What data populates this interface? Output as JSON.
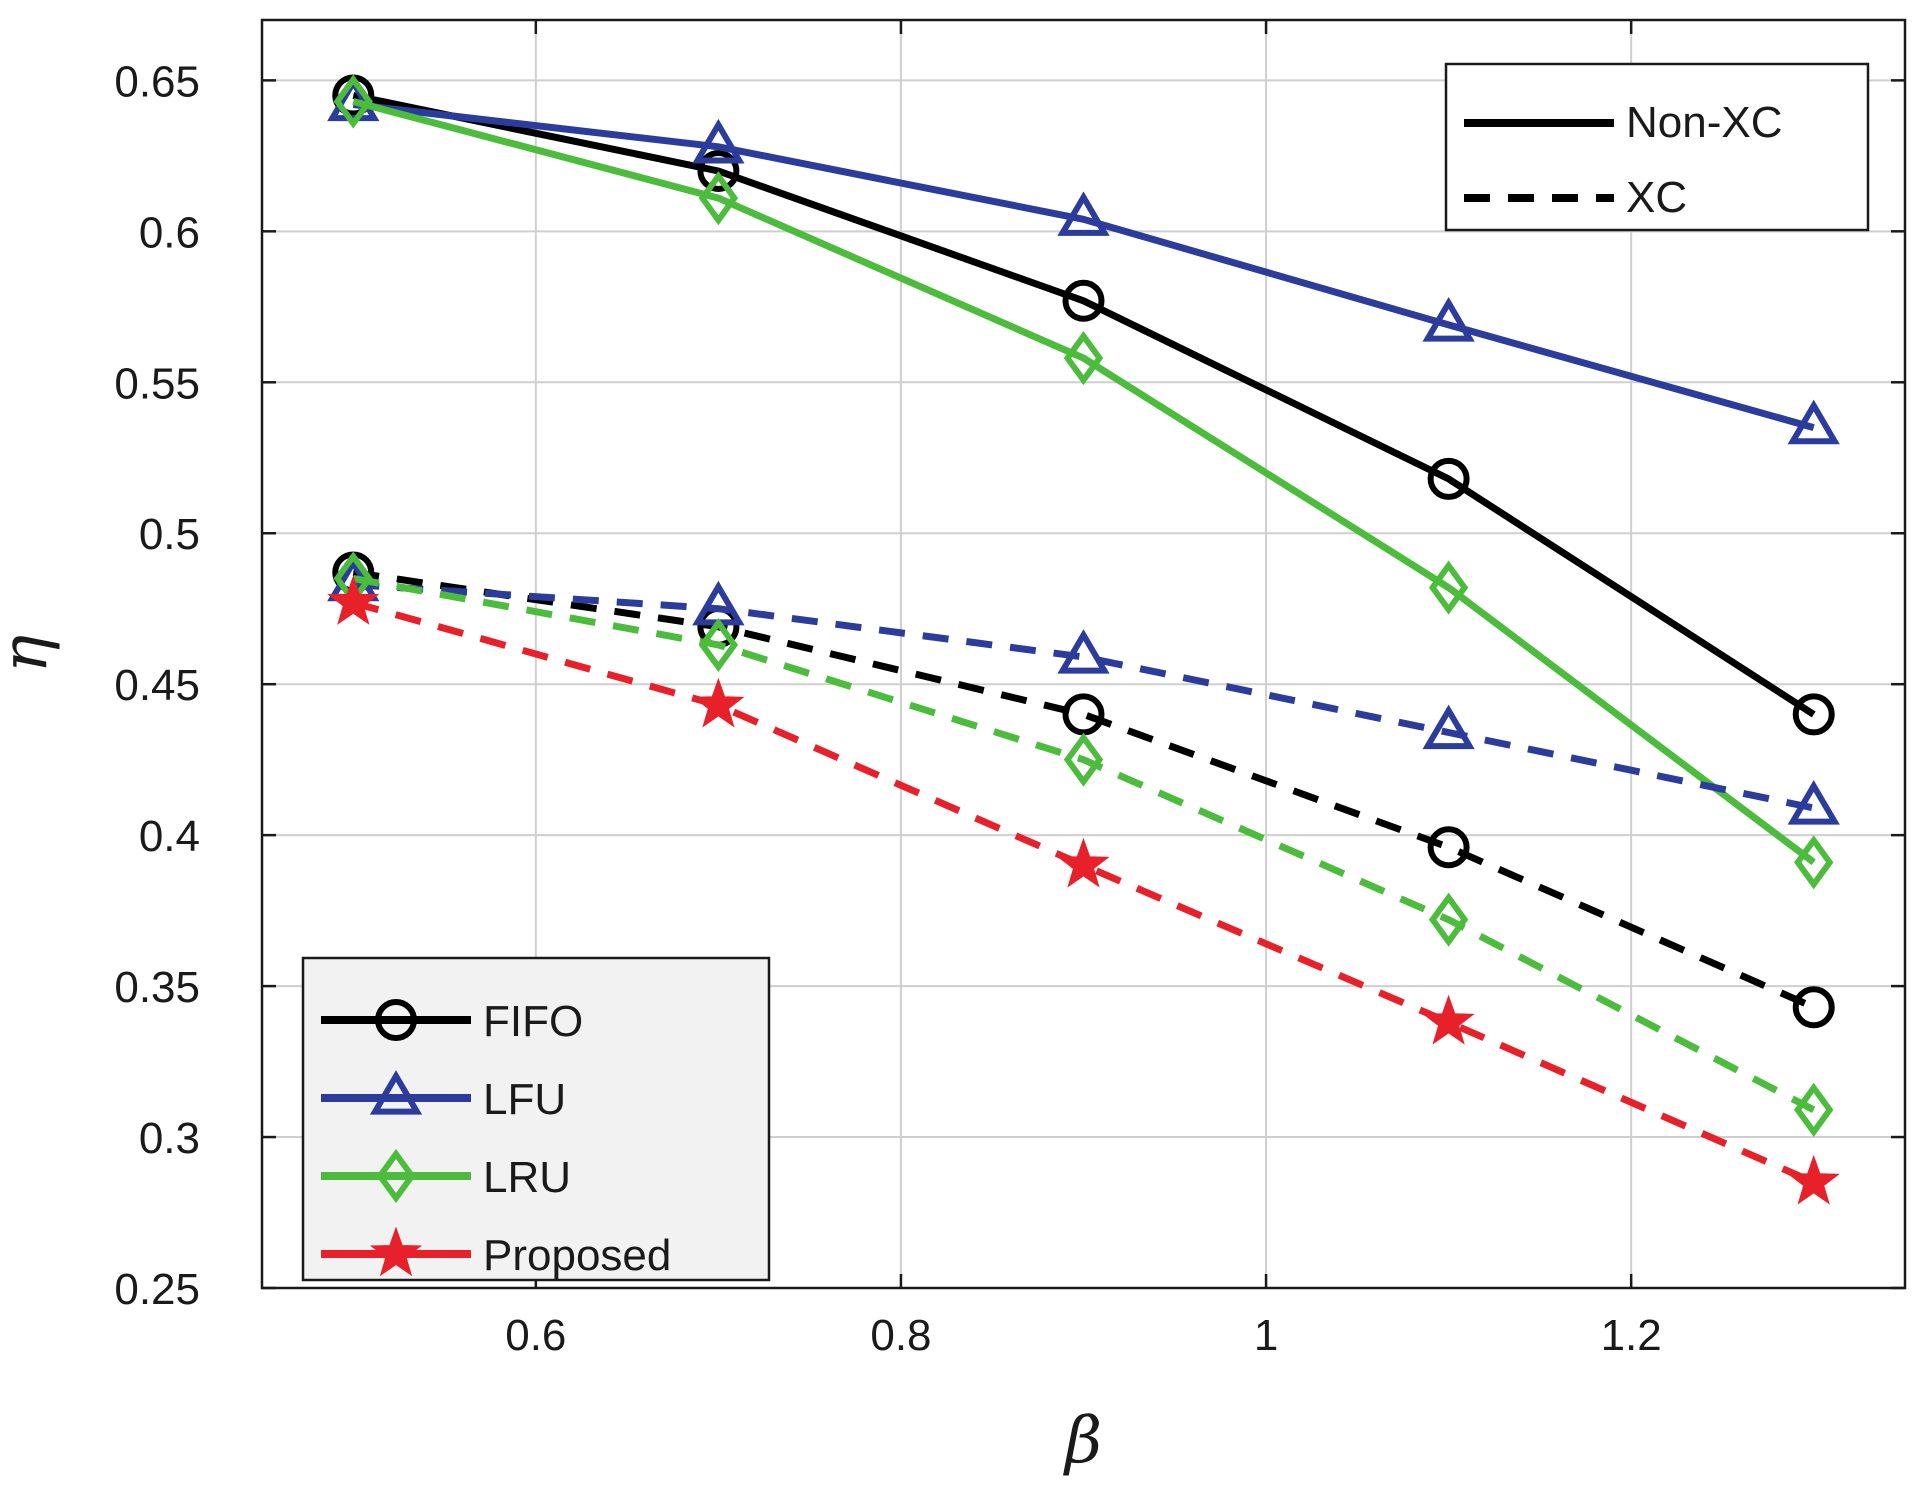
{
  "chart_data": {
    "type": "line",
    "title": "",
    "xlabel": "β",
    "ylabel": "η",
    "xlim": [
      0.45,
      1.35
    ],
    "ylim": [
      0.25,
      0.67
    ],
    "xticks": [
      0.6,
      0.8,
      1,
      1.2
    ],
    "xtick_labels": [
      "0.6",
      "0.8",
      "1",
      "1.2"
    ],
    "yticks": [
      0.25,
      0.3,
      0.35,
      0.4,
      0.45,
      0.5,
      0.55,
      0.6,
      0.65
    ],
    "ytick_labels": [
      "0.25",
      "0.3",
      "0.35",
      "0.4",
      "0.45",
      "0.5",
      "0.55",
      "0.6",
      "0.65"
    ],
    "grid": true,
    "x": [
      0.5,
      0.7,
      0.9,
      1.1,
      1.3
    ],
    "series": [
      {
        "name": "FIFO",
        "mode": "Non-XC",
        "color": "#000000",
        "marker": "circle",
        "dashed": false,
        "values": [
          0.645,
          0.62,
          0.577,
          0.518,
          0.44
        ]
      },
      {
        "name": "LFU",
        "mode": "Non-XC",
        "color": "#2c3c9c",
        "marker": "triangle",
        "dashed": false,
        "values": [
          0.642,
          0.628,
          0.604,
          0.569,
          0.535
        ]
      },
      {
        "name": "LRU",
        "mode": "Non-XC",
        "color": "#4cbc3c",
        "marker": "diamond",
        "dashed": false,
        "values": [
          0.643,
          0.611,
          0.558,
          0.482,
          0.391
        ]
      },
      {
        "name": "FIFO",
        "mode": "XC",
        "color": "#000000",
        "marker": "circle",
        "dashed": true,
        "values": [
          0.487,
          0.469,
          0.44,
          0.396,
          0.343
        ]
      },
      {
        "name": "LFU",
        "mode": "XC",
        "color": "#2c3c9c",
        "marker": "triangle",
        "dashed": true,
        "values": [
          0.483,
          0.475,
          0.459,
          0.434,
          0.409
        ]
      },
      {
        "name": "LRU",
        "mode": "XC",
        "color": "#4cbc3c",
        "marker": "diamond",
        "dashed": true,
        "values": [
          0.485,
          0.463,
          0.425,
          0.372,
          0.309
        ]
      },
      {
        "name": "Proposed",
        "mode": "XC",
        "color": "#e8202a",
        "marker": "star",
        "dashed": true,
        "values": [
          0.477,
          0.443,
          0.39,
          0.338,
          0.285
        ]
      }
    ],
    "legend_algorithms": {
      "position": "bottom-left",
      "entries": [
        {
          "label": "FIFO",
          "color": "#000000",
          "marker": "circle"
        },
        {
          "label": "LFU",
          "color": "#2c3c9c",
          "marker": "triangle"
        },
        {
          "label": "LRU",
          "color": "#4cbc3c",
          "marker": "diamond"
        },
        {
          "label": "Proposed",
          "color": "#e8202a",
          "marker": "star"
        }
      ]
    },
    "legend_linestyle": {
      "position": "top-right",
      "entries": [
        {
          "label": "Non-XC",
          "dashed": false
        },
        {
          "label": "XC",
          "dashed": true
        }
      ]
    }
  }
}
